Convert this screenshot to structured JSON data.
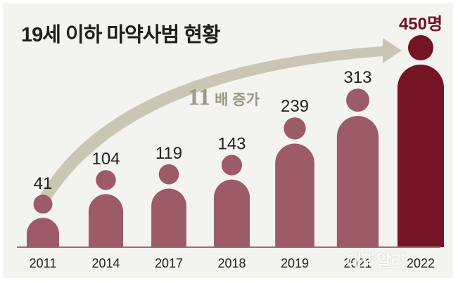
{
  "title": "19세 이하 마약사범 현황",
  "annotation": {
    "multiplier": "11",
    "text": "배 증가"
  },
  "watermark": "대학알리",
  "colors": {
    "bar": "#9c5b67",
    "bar_highlight": "#741425",
    "arrow": "#c9c6b5",
    "baseline": "#9c6b72",
    "text": "#222222",
    "highlight_text": "#6e1224",
    "annotation": "#9b9886"
  },
  "chart_data": {
    "type": "bar",
    "title": "19세 이하 마약사범 현황",
    "categories": [
      "2011",
      "2014",
      "2017",
      "2018",
      "2019",
      "2021",
      "2022"
    ],
    "values": [
      41,
      104,
      119,
      143,
      239,
      313,
      450
    ],
    "labels": [
      "41",
      "104",
      "119",
      "143",
      "239",
      "313",
      "450명"
    ],
    "highlight_index": 6,
    "xlabel": "",
    "ylabel": "",
    "ylim": [
      0,
      450
    ]
  }
}
